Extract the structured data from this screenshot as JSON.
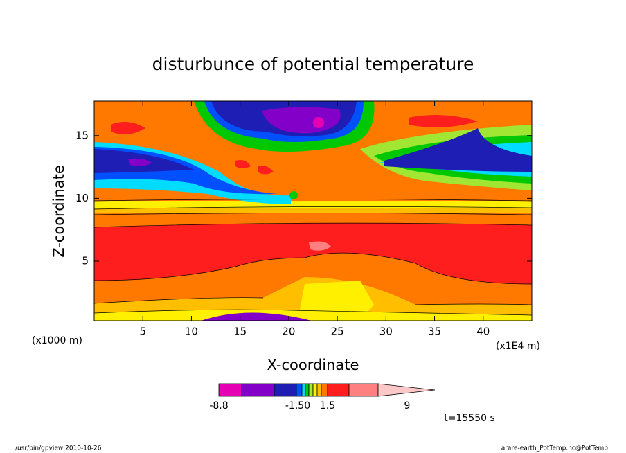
{
  "chart_data": {
    "type": "contour",
    "title": "disturbunce of potential temperature",
    "x_label": "X-coordinate",
    "y_label": "Z-coordinate",
    "x_unit": "(x1000 m)",
    "x_unit2": "(x1E4 m)",
    "xlim": [
      0,
      45
    ],
    "xticks": [
      5,
      10,
      15,
      20,
      25,
      30,
      35,
      40
    ],
    "ylim": [
      0.25,
      17.75
    ],
    "yticks": [
      5,
      10,
      15
    ],
    "colorbar": {
      "colors": [
        "#e600b4",
        "#8200c8",
        "#1e1eb4",
        "#0050ff",
        "#00dcff",
        "#00c800",
        "#a0e632",
        "#fff000",
        "#ffbe00",
        "#ff7800",
        "#ff1e1e",
        "#ff8080",
        "#ffc8c8"
      ],
      "labels": [
        "-8.8",
        "-1.50",
        "1.5",
        "9"
      ]
    },
    "time_label": "t=15550 s",
    "footer_left": "/usr/bin/gpview  2010-10-26",
    "footer_right": "arare-earth_PotTemp.nc@PotTemp"
  }
}
